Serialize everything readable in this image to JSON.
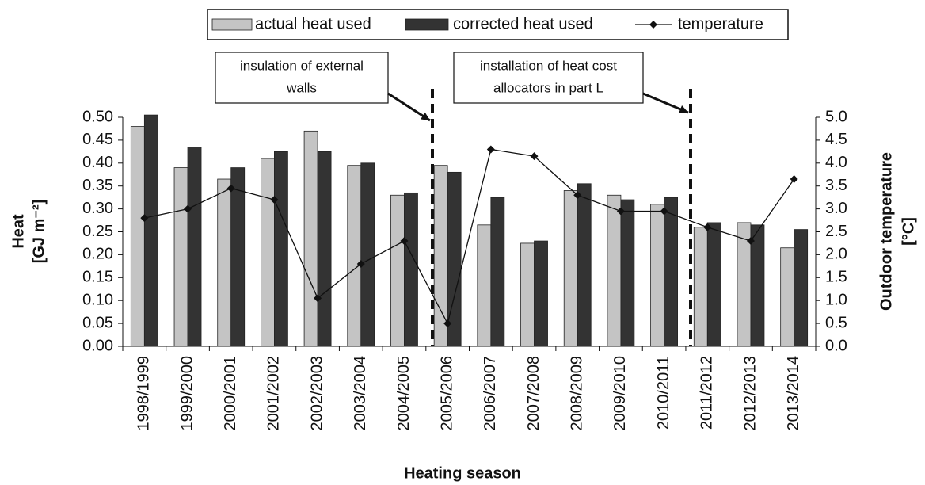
{
  "chart_data": {
    "type": "bar-line",
    "x_label": "Heating season",
    "y_label": [
      "Heat",
      "[GJ m⁻²]"
    ],
    "y2_label": [
      "Outdoor temperature",
      "[°C]"
    ],
    "categories": [
      "1998/1999",
      "1999/2000",
      "2000/2001",
      "2001/2002",
      "2002/2003",
      "2003/2004",
      "2004/2005",
      "2005/2006",
      "2006/2007",
      "2007/2008",
      "2008/2009",
      "2009/2010",
      "2010/2011",
      "2011/2012",
      "2012/2013",
      "2013/2014"
    ],
    "series": [
      {
        "name": "actual heat used",
        "type": "bar",
        "color": "#c4c4c4",
        "values": [
          0.48,
          0.39,
          0.365,
          0.41,
          0.47,
          0.395,
          0.33,
          0.395,
          0.265,
          0.225,
          0.34,
          0.33,
          0.31,
          0.26,
          0.27,
          0.215
        ]
      },
      {
        "name": "corrected heat used",
        "type": "bar",
        "color": "#333333",
        "values": [
          0.505,
          0.435,
          0.39,
          0.425,
          0.425,
          0.4,
          0.335,
          0.38,
          0.325,
          0.23,
          0.355,
          0.32,
          0.325,
          0.27,
          0.265,
          0.255
        ]
      },
      {
        "name": "temperature",
        "type": "line",
        "axis": "y2",
        "color": "#111111",
        "values": [
          2.8,
          3.0,
          3.45,
          3.2,
          1.05,
          1.8,
          2.3,
          0.5,
          4.3,
          4.15,
          3.3,
          2.95,
          2.95,
          2.6,
          2.3,
          3.65
        ]
      }
    ],
    "ylim": [
      0,
      0.5
    ],
    "yticks": [
      {
        "value": 0,
        "label": "0.00"
      },
      0.05,
      {
        "value": 0.1,
        "label": "0.10"
      },
      0.15,
      {
        "value": 0.2,
        "label": "0.20"
      },
      0.25,
      {
        "value": 0.3,
        "label": "0.30"
      },
      0.35,
      {
        "value": 0.4,
        "label": "0.40"
      },
      0.45,
      {
        "value": 0.5,
        "label": "0.50"
      }
    ],
    "y2lim": [
      0,
      5
    ],
    "y2ticks": [
      {
        "value": 0,
        "label": "0.0"
      },
      0.5,
      {
        "value": 1,
        "label": "1.0"
      },
      1.5,
      {
        "value": 2,
        "label": "2.0"
      },
      2.5,
      {
        "value": 3,
        "label": "3.0"
      },
      3.5,
      {
        "value": 4,
        "label": "4.0"
      },
      4.5,
      {
        "value": 5,
        "label": "5.0"
      }
    ],
    "annotations": [
      {
        "lines": [
          "insulation of external",
          "walls"
        ]
      },
      {
        "lines": [
          "installation of heat cost",
          "allocators in part L"
        ]
      }
    ],
    "legend": "top"
  }
}
